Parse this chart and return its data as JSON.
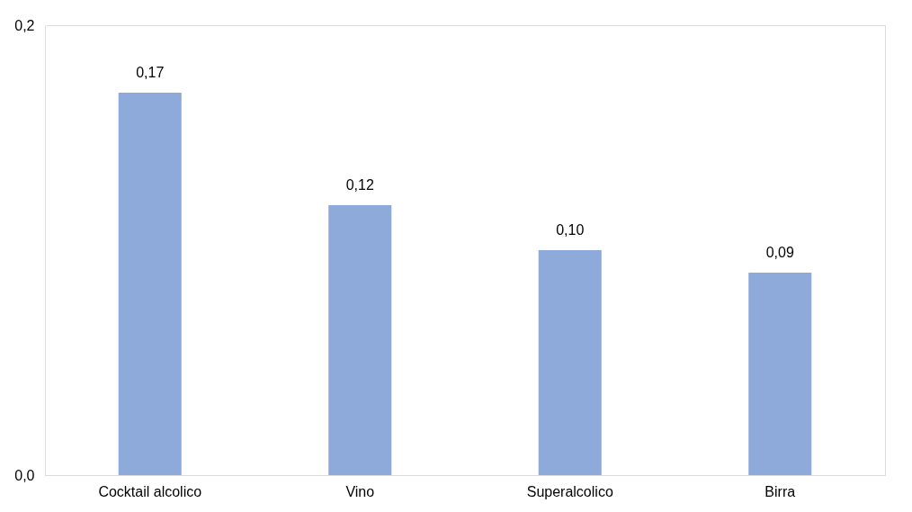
{
  "chart_data": {
    "type": "bar",
    "categories": [
      "Cocktail alcolico",
      "Vino",
      "Superalcolico",
      "Birra"
    ],
    "values": [
      0.17,
      0.12,
      0.1,
      0.09
    ],
    "value_labels": [
      "0,17",
      "0,12",
      "0,10",
      "0,09"
    ],
    "color": "#8eaadb",
    "ylim": [
      0,
      0.2
    ],
    "yticks": [
      {
        "value": 0,
        "label": "0,0"
      },
      {
        "value": 0.2,
        "label": "0,2"
      }
    ],
    "grid": false
  }
}
